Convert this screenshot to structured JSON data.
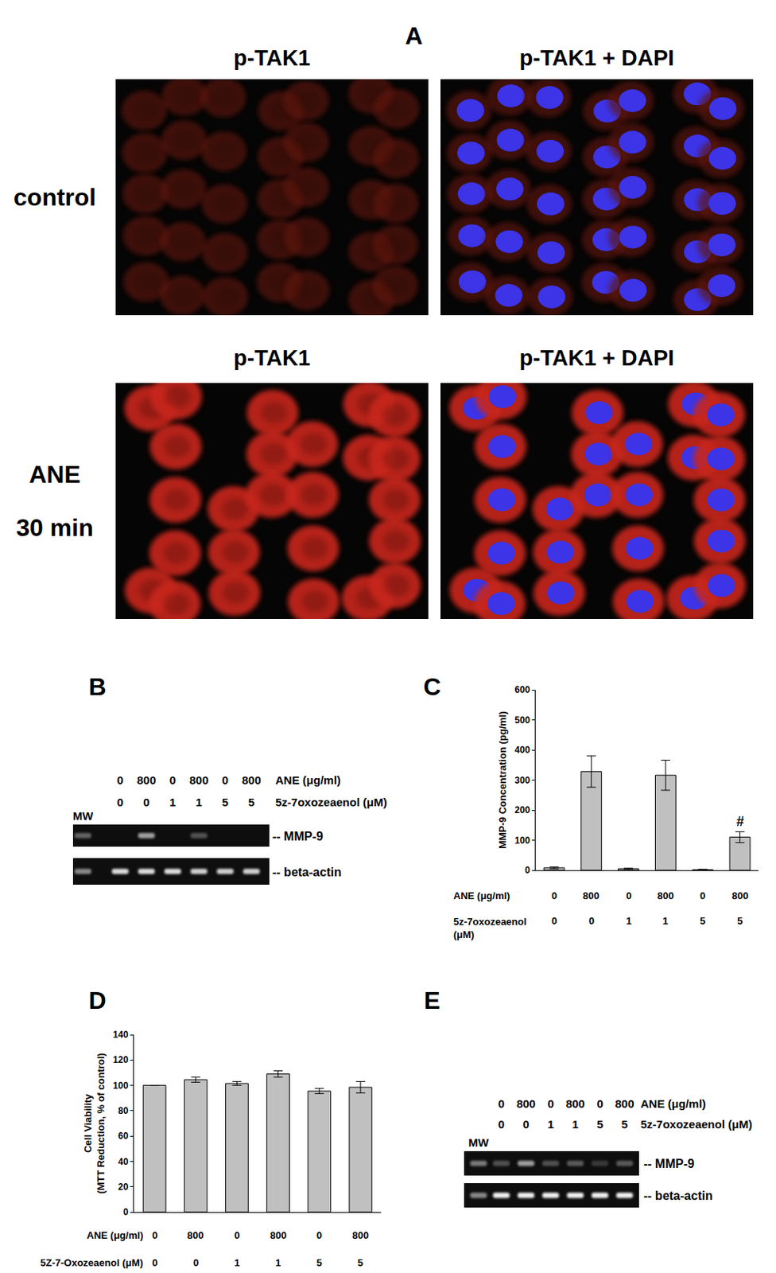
{
  "figure": {
    "A": {
      "label": "A",
      "rows": [
        {
          "label": [
            "control"
          ],
          "titles": [
            "p-TAK1",
            "p-TAK1 + DAPI"
          ]
        },
        {
          "label": [
            "ANE",
            "30 min"
          ],
          "titles": [
            "p-TAK1",
            "p-TAK1 + DAPI"
          ]
        }
      ]
    },
    "B": {
      "label": "B",
      "type": "gel",
      "mw": "MW",
      "rows": [
        {
          "label": "ANE (μg/ml)",
          "values": [
            0,
            800,
            0,
            800,
            0,
            800
          ]
        },
        {
          "label": "5z-7oxozeaenol (μM)",
          "values": [
            0,
            0,
            1,
            1,
            5,
            5
          ]
        }
      ],
      "bands": [
        "-- MMP-9",
        "-- beta-actin"
      ]
    },
    "E": {
      "label": "E",
      "type": "gel",
      "mw": "MW",
      "rows": [
        {
          "label": "ANE (μg/ml)",
          "values": [
            0,
            800,
            0,
            800,
            0,
            800
          ]
        },
        {
          "label": "5z-7oxozeaenol (μM)",
          "values": [
            0,
            0,
            1,
            1,
            5,
            5
          ]
        }
      ],
      "bands": [
        "-- MMP-9",
        "-- beta-actin"
      ]
    }
  },
  "chart_data": [
    {
      "panel": "C",
      "type": "bar",
      "categories": [
        null,
        null,
        null,
        null,
        null,
        null
      ],
      "values": [
        8,
        328,
        5,
        316,
        2,
        110
      ],
      "errors": [
        3,
        52,
        2,
        50,
        1,
        18
      ],
      "color": "#c0c0c0",
      "ylabel": "MMP-9 Concentration (pg/ml)",
      "ylim": [
        0,
        600
      ],
      "yticks": [
        0,
        100,
        200,
        300,
        400,
        500,
        600
      ],
      "grid": false,
      "tick_labels": "y",
      "x_rows": [
        {
          "label": "ANE (μg/ml)",
          "values": [
            0,
            800,
            0,
            800,
            0,
            800
          ]
        },
        {
          "label": "5z-7oxozeaenol\n(μM)",
          "values": [
            0,
            0,
            1,
            1,
            5,
            5
          ]
        }
      ],
      "annotations": [
        {
          "text": "#",
          "index": 5
        }
      ]
    },
    {
      "panel": "D",
      "type": "bar",
      "categories": [
        null,
        null,
        null,
        null,
        null,
        null
      ],
      "values": [
        100,
        104.5,
        101.5,
        109,
        95.5,
        98.5
      ],
      "errors": [
        0,
        2,
        1.5,
        2.5,
        2,
        4.5
      ],
      "color": "#c0c0c0",
      "ylabel": "Cell Viability\n(MTT Reduction, % of control)",
      "ylim": [
        0,
        140
      ],
      "yticks": [
        0,
        20,
        40,
        60,
        80,
        100,
        120,
        140
      ],
      "grid": false,
      "tick_labels": "y",
      "x_rows": [
        {
          "label": "ANE (μg/ml)",
          "values": [
            0,
            800,
            0,
            800,
            0,
            800
          ]
        },
        {
          "label": "5Z-7-Oxozeaenol (μM)",
          "values": [
            0,
            0,
            1,
            1,
            5,
            5
          ]
        }
      ],
      "annotations": []
    }
  ]
}
